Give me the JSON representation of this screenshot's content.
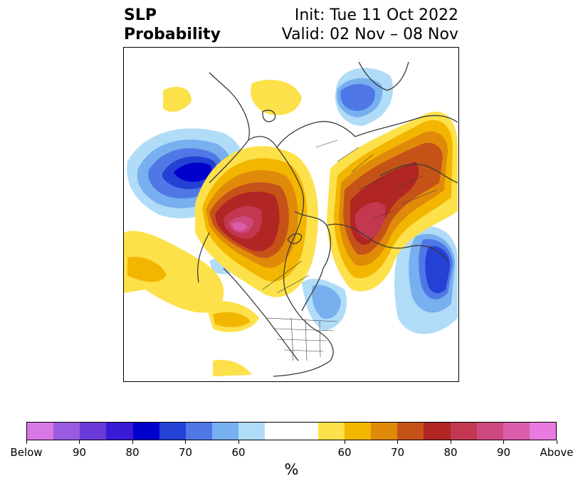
{
  "title": {
    "left_line1": "SLP",
    "left_line2": "Probability",
    "right_line1": "Init: Tue 11 Oct 2022",
    "right_line2": "Valid: 02 Nov – 08 Nov"
  },
  "colorbar": {
    "colors": [
      "#d878e6",
      "#9b5be0",
      "#6a3ad8",
      "#3a1ad4",
      "#0000cc",
      "#2441d6",
      "#4f78e6",
      "#77afef",
      "#b0dcf8",
      "#ffffff",
      "#ffffff",
      "#fde14a",
      "#f3b600",
      "#e08a0a",
      "#c55318",
      "#b12525",
      "#c23850",
      "#ce4a7e",
      "#d95daa",
      "#e87ae0"
    ],
    "tick_labels": [
      "Below",
      "90",
      "80",
      "70",
      "60",
      "60",
      "70",
      "80",
      "90",
      "Above"
    ],
    "label": "%"
  },
  "map": {
    "projection": "north-polar-stereographic",
    "variable": "sea level pressure tercile probability"
  }
}
